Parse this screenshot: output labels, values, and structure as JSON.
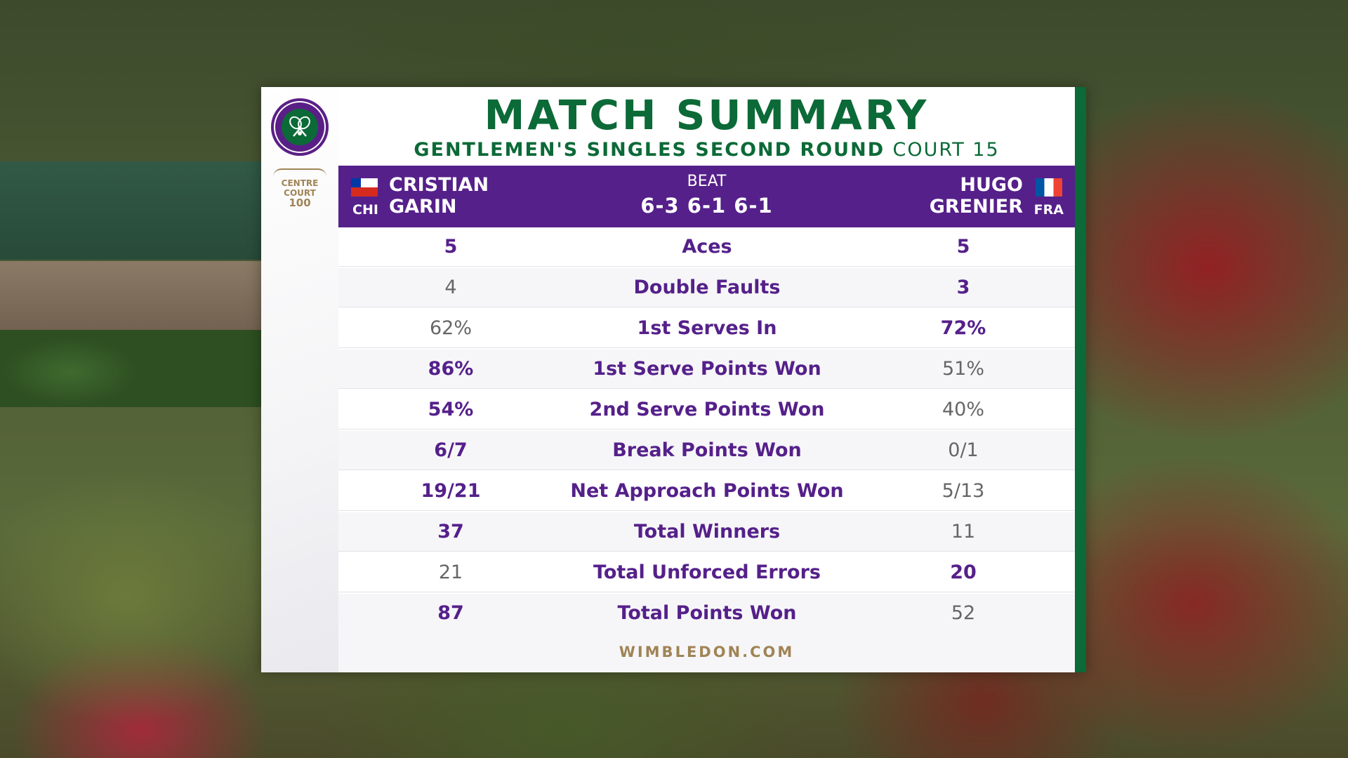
{
  "board": {
    "title": "MATCH SUMMARY",
    "round": "GENTLEMEN'S SINGLES SECOND ROUND",
    "court": "COURT 15",
    "centre_court_line1": "CENTRE",
    "centre_court_line2": "COURT",
    "centre_court_line3": "100",
    "footer": "WIMBLEDON.COM"
  },
  "match": {
    "result_label": "BEAT",
    "score": "6-3 6-1 6-1",
    "player_left": {
      "first": "CRISTIAN",
      "last": "GARIN",
      "country": "CHI",
      "flag_icon": "chile-flag-icon"
    },
    "player_right": {
      "first": "HUGO",
      "last": "GRENIER",
      "country": "FRA",
      "flag_icon": "france-flag-icon"
    }
  },
  "colors": {
    "purple": "#55208a",
    "green": "#0b6a37",
    "gold": "#a08456"
  },
  "stats": [
    {
      "label": "Aces",
      "left": "5",
      "right": "5",
      "lead": "both"
    },
    {
      "label": "Double Faults",
      "left": "4",
      "right": "3",
      "lead": "right"
    },
    {
      "label": "1st Serves In",
      "left": "62%",
      "right": "72%",
      "lead": "right"
    },
    {
      "label": "1st Serve Points Won",
      "left": "86%",
      "right": "51%",
      "lead": "left"
    },
    {
      "label": "2nd Serve Points Won",
      "left": "54%",
      "right": "40%",
      "lead": "left"
    },
    {
      "label": "Break Points Won",
      "left": "6/7",
      "right": "0/1",
      "lead": "left"
    },
    {
      "label": "Net Approach Points Won",
      "left": "19/21",
      "right": "5/13",
      "lead": "left"
    },
    {
      "label": "Total Winners",
      "left": "37",
      "right": "11",
      "lead": "left"
    },
    {
      "label": "Total Unforced Errors",
      "left": "21",
      "right": "20",
      "lead": "right"
    },
    {
      "label": "Total Points Won",
      "left": "87",
      "right": "52",
      "lead": "left"
    }
  ]
}
